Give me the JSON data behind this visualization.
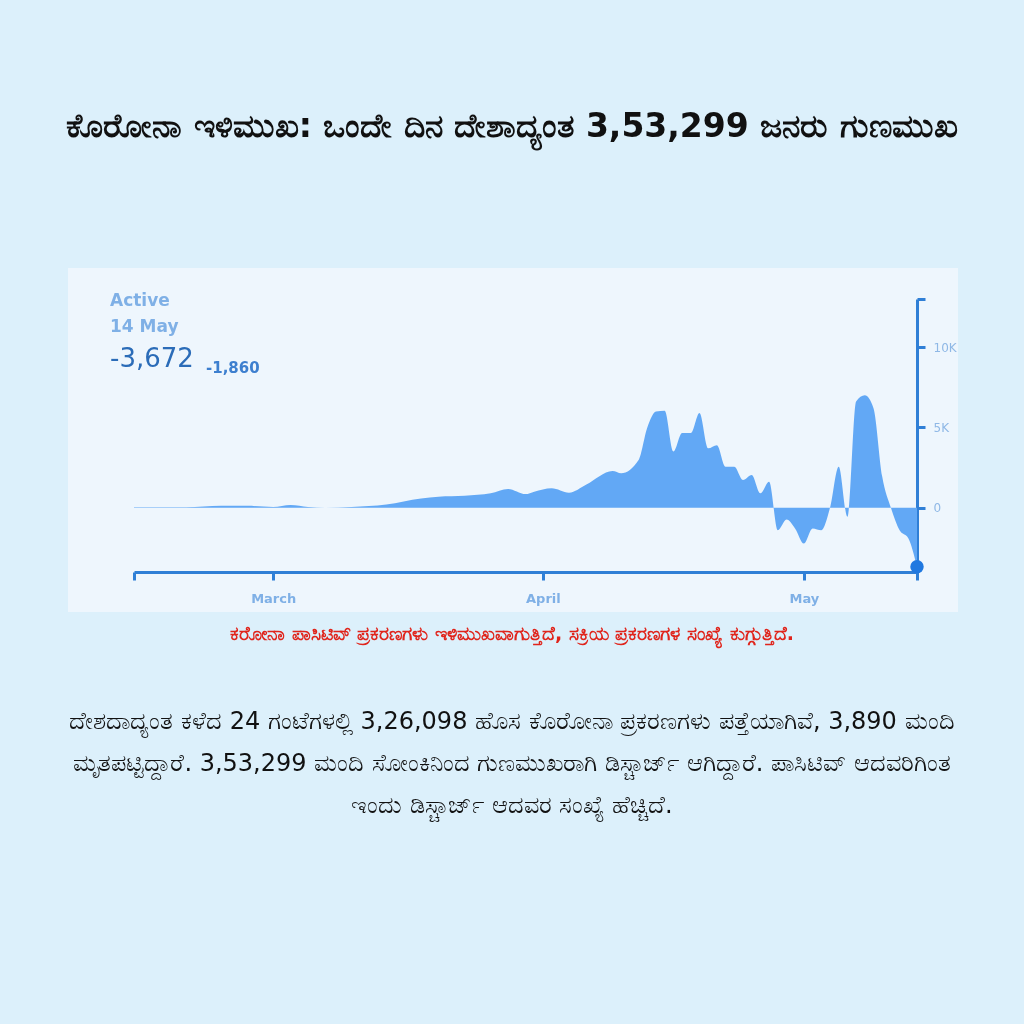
{
  "chart_data": {
    "type": "area",
    "title": "ಕೊರೋನಾ ಇಳಿಮುಖ: ಒಂದೇ ದಿನ ದೇಶಾದ್ಯಂತ 3,53,299 ಜನರು ಗುಣಮುಖ",
    "annotations": [
      "Active",
      "14 May",
      "-3,672",
      "-1,860",
      "ಕರೋನಾ ಪಾಸಿಟಿವ್ ಪ್ರಕರಣಗಳು ಇಳಿಮುಖವಾಗುತ್ತಿದೆ, ಸಕ್ರಿಯ ಪ್ರಕರಣಗಳ ಸಂಖ್ಯೆ ಕುಗ್ಗುತ್ತಿದೆ.",
      "ದೇಶದಾದ್ಯಂತ ಕಳೆದ 24 ಗಂಟೆಗಳಲ್ಲಿ 3,26,098 ಹೊಸ ಕೊರೋನಾ ಪ್ರಕರಣಗಳು ಪತ್ತೆಯಾಗಿವೆ, 3,890 ಮಂದಿ ಮೃತಪಟ್ಟಿದ್ದಾರೆ. 3,53,299 ಮಂದಿ ಸೋಂಕಿನಿಂದ ಗುಣಮುಖರಾಗಿ ಡಿಸ್ಚಾರ್ಜ್ ಆಗಿದ್ದಾರೆ. ಪಾಸಿಟಿವ್ ಆದವರಿಗಿಂತ ಇಂದು ಡಿಸ್ಚಾರ್ಜ್ ಆದವರ ಸಂಖ್ಯೆ ಹೆಚ್ಚಿದೆ."
    ],
    "x": [
      "--02-13",
      "--02-19",
      "--02-23",
      "--02-26",
      "--03-01",
      "--03-03",
      "--03-05",
      "--03-07",
      "--03-10",
      "--03-14",
      "--03-18",
      "--03-20",
      "--03-23",
      "--03-26",
      "--03-28",
      "--03-30",
      "--03-31",
      "--04-02",
      "--04-04",
      "--04-06",
      "--04-09",
      "--04-10",
      "--04-12",
      "--04-13",
      "--04-14",
      "--04-15",
      "--04-16",
      "--04-17",
      "--04-18",
      "--04-19",
      "--04-20",
      "--04-21",
      "--04-22",
      "--04-23",
      "--04-24",
      "--04-25",
      "--04-26",
      "--04-27",
      "--04-28",
      "--04-29",
      "--04-30",
      "--05-01",
      "--05-02",
      "--05-03",
      "--05-04",
      "--05-05",
      "--05-06",
      "--05-07",
      "--05-08",
      "--05-09",
      "--05-10",
      "--05-11",
      "--05-12",
      "--05-13",
      "--05-14"
    ],
    "series": [
      {
        "color": "#62a8f5",
        "values": [
          30,
          30,
          130,
          120,
          50,
          170,
          50,
          0,
          50,
          200,
          580,
          690,
          750,
          900,
          1170,
          850,
          1000,
          1210,
          940,
          1450,
          2290,
          2150,
          2980,
          5000,
          6000,
          6040,
          3500,
          4650,
          4650,
          5900,
          3700,
          3900,
          2560,
          2560,
          1730,
          2040,
          900,
          1620,
          -1400,
          -730,
          -1300,
          -2230,
          -1290,
          -1400,
          0,
          2560,
          -560,
          6620,
          7000,
          6200,
          1940,
          0,
          -1400,
          -1900,
          -3672
        ]
      },
      {
        "type": "scatter",
        "color": "#1f78e0",
        "x": [
          "--05-14"
        ],
        "values": [
          -3672
        ]
      }
    ],
    "xlim": [
      "--02-13",
      "--05-14"
    ],
    "xticks": [
      {
        "value": "--02-13",
        "label": null
      },
      {
        "value": "--03-01",
        "label": "March"
      },
      {
        "value": "--04-01",
        "label": "April"
      },
      {
        "value": "--05-01",
        "label": "May"
      },
      {
        "value": "--05-14",
        "label": null
      }
    ],
    "ylim": [
      -4000,
      13000
    ],
    "yticks": [
      {
        "value": 0,
        "label": "0"
      },
      {
        "value": 5000,
        "label": "5K"
      },
      {
        "value": 10000,
        "label": "10K"
      },
      {
        "value": 13000,
        "label": null
      }
    ],
    "grid": false
  }
}
